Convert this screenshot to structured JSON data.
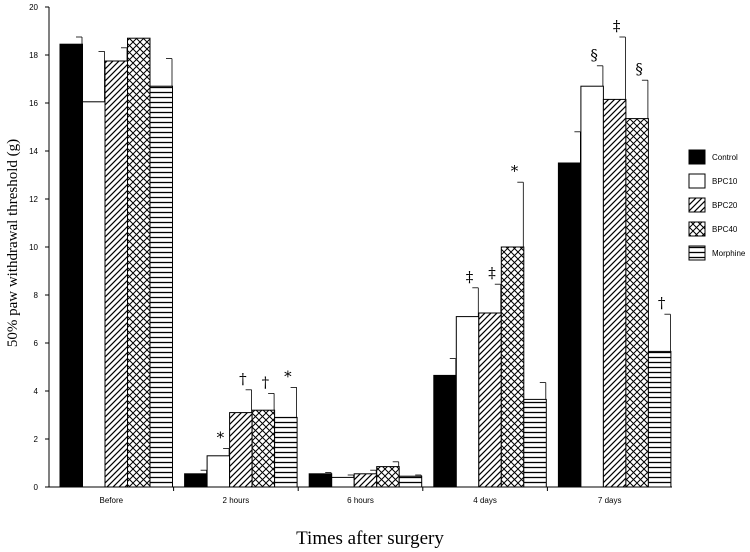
{
  "chart_data": {
    "type": "bar",
    "title": "",
    "xlabel": "Times after surgery",
    "ylabel": "50% paw withdrawal threshold (g)",
    "ylim": [
      0,
      20
    ],
    "yticks": [
      0,
      2,
      4,
      6,
      8,
      10,
      12,
      14,
      16,
      18,
      20
    ],
    "grid": false,
    "legend_position": "right",
    "categories": [
      "Before",
      "2 hours",
      "6 hours",
      "4 days",
      "7 days"
    ],
    "series": [
      {
        "name": "Control",
        "pattern": "solid-black",
        "values": [
          18.45,
          0.55,
          0.55,
          4.65,
          13.5
        ],
        "errors": [
          0.3,
          0.15,
          0.05,
          0.7,
          1.3
        ],
        "marks": [
          "",
          "",
          "",
          "",
          ""
        ]
      },
      {
        "name": "BPC10",
        "pattern": "white",
        "values": [
          16.05,
          1.3,
          0.4,
          7.1,
          16.7
        ],
        "errors": [
          2.1,
          0.3,
          0.1,
          1.2,
          0.85
        ],
        "marks": [
          "",
          "*",
          "",
          "‡",
          "§"
        ]
      },
      {
        "name": "BPC20",
        "pattern": "diagonal-hatch",
        "values": [
          17.75,
          3.1,
          0.55,
          7.25,
          16.15
        ],
        "errors": [
          0.55,
          0.95,
          0.15,
          1.2,
          2.6
        ],
        "marks": [
          "",
          "†",
          "",
          "‡",
          "‡"
        ]
      },
      {
        "name": "BPC40",
        "pattern": "crosshatch",
        "values": [
          18.7,
          3.2,
          0.85,
          10.0,
          15.35
        ],
        "errors": [
          0.0,
          0.7,
          0.2,
          2.7,
          1.6
        ],
        "marks": [
          "",
          "†",
          "",
          "*",
          "§"
        ]
      },
      {
        "name": "Morphine",
        "pattern": "horizontal-lines",
        "values": [
          16.7,
          2.9,
          0.45,
          3.65,
          5.65
        ],
        "errors": [
          1.15,
          1.25,
          0.05,
          0.7,
          1.55
        ],
        "marks": [
          "",
          "*",
          "",
          "",
          "†"
        ]
      }
    ]
  }
}
